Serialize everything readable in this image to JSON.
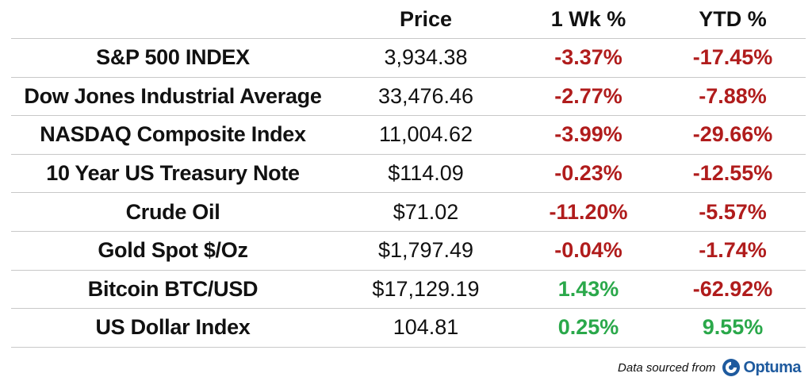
{
  "header": {
    "price_label": "Price",
    "wk_label": "1 Wk %",
    "ytd_label": "YTD %"
  },
  "rows": [
    {
      "name": "S&P 500 INDEX",
      "price": "3,934.38",
      "wk": "-3.37%",
      "ytd": "-17.45%"
    },
    {
      "name": "Dow Jones Industrial Average",
      "price": "33,476.46",
      "wk": "-2.77%",
      "ytd": "-7.88%"
    },
    {
      "name": "NASDAQ Composite Index",
      "price": "11,004.62",
      "wk": "-3.99%",
      "ytd": "-29.66%"
    },
    {
      "name": "10 Year US Treasury Note",
      "price": "$114.09",
      "wk": "-0.23%",
      "ytd": "-12.55%"
    },
    {
      "name": "Crude Oil",
      "price": "$71.02",
      "wk": "-11.20%",
      "ytd": "-5.57%"
    },
    {
      "name": "Gold Spot $/Oz",
      "price": "$1,797.49",
      "wk": "-0.04%",
      "ytd": "-1.74%"
    },
    {
      "name": "Bitcoin BTC/USD",
      "price": "$17,129.19",
      "wk": "1.43%",
      "ytd": "-62.92%"
    },
    {
      "name": "US Dollar Index",
      "price": "104.81",
      "wk": "0.25%",
      "ytd": "9.55%"
    }
  ],
  "colors": {
    "negative": "#b01c1c",
    "positive": "#2aa84a",
    "logo": "#1e5a9e"
  },
  "footer": {
    "source_text": "Data sourced from",
    "logo_text": "Optuma",
    "logo_icon": "optuma-logo-icon"
  }
}
